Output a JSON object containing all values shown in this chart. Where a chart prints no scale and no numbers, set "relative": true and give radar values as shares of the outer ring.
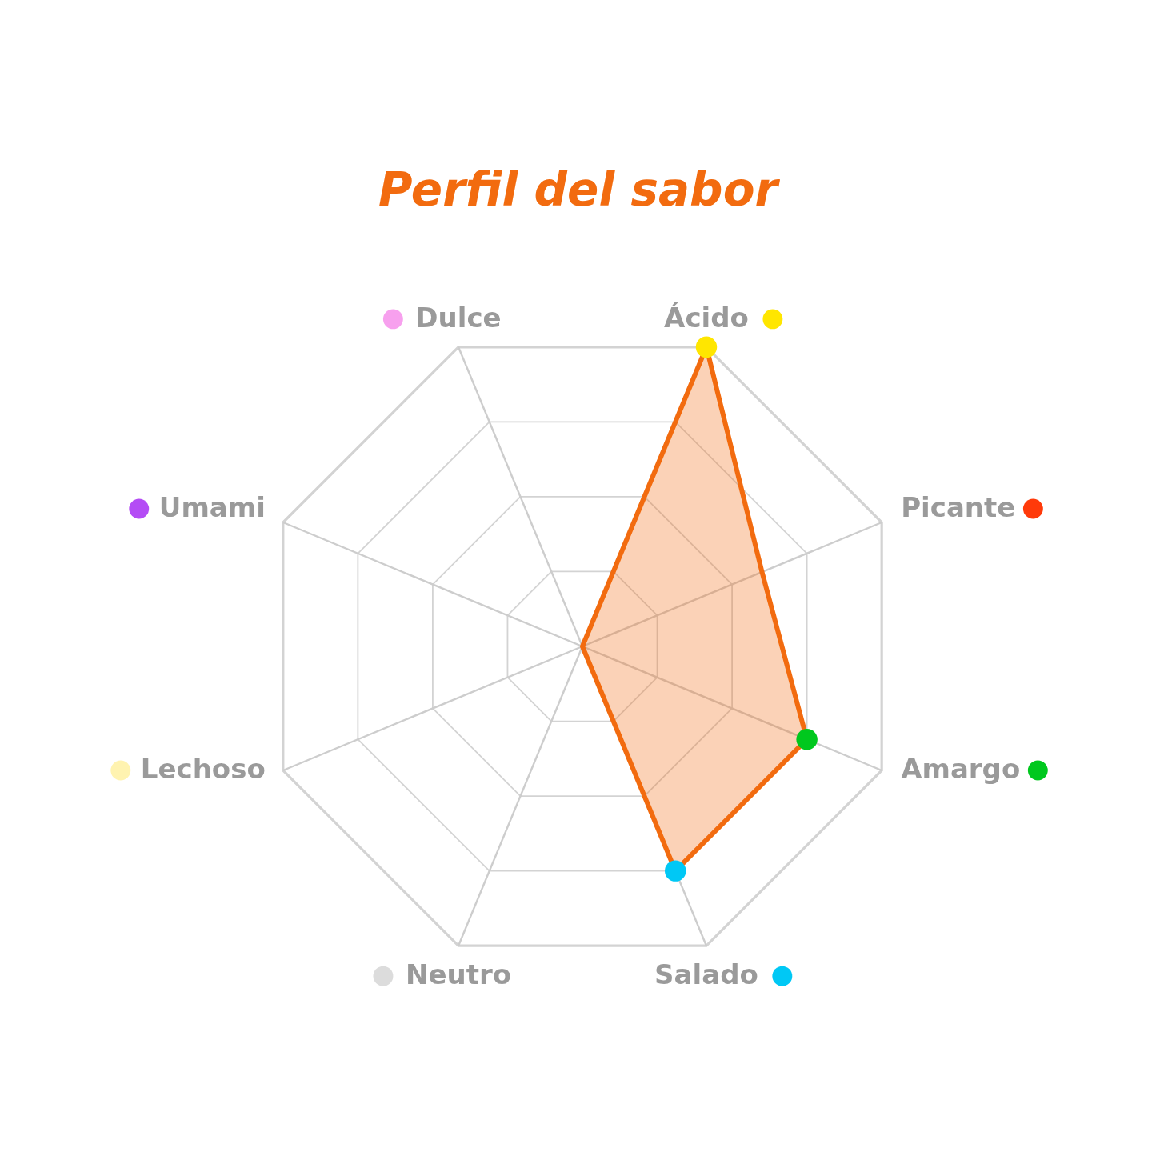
{
  "chart_data": {
    "type": "radar",
    "title": "Perfil del sabor",
    "categories": [
      "Ácido",
      "Picante",
      "Amargo",
      "Salado",
      "Neutro",
      "Lechoso",
      "Umami",
      "Dulce"
    ],
    "colors": [
      "#ffe600",
      "#ff3a0a",
      "#00c81e",
      "#00c8f5",
      "#dcdcdc",
      "#fff3b0",
      "#b44cf5",
      "#f7a0ee"
    ],
    "relative": true,
    "grid": true,
    "marker": "circle",
    "series": [
      {
        "color": "#f26b0f",
        "values": [
          1,
          0.6,
          0.75,
          0.75,
          0,
          0,
          0,
          0
        ],
        "colors": [
          "#ffe600",
          null,
          "#00c81e",
          "#00c8f5",
          null,
          null,
          null,
          null
        ]
      }
    ]
  }
}
